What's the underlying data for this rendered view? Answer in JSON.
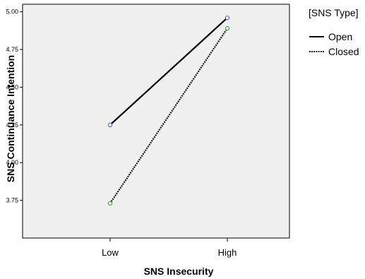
{
  "chart_data": {
    "type": "line",
    "xlabel": "SNS Insecurity",
    "ylabel": "SNS Continuance Intention",
    "categories": [
      "Low",
      "High"
    ],
    "ylim": [
      3.5,
      5.05
    ],
    "yticks": [
      "3.75",
      "4.00",
      "4.25",
      "4.50",
      "4.75",
      "5.00"
    ],
    "legend": {
      "title": "[SNS Type]",
      "position": "right"
    },
    "grid": false,
    "series": [
      {
        "name": "Open",
        "values": [
          4.25,
          4.96
        ],
        "style": "solid",
        "marker_color": "#3b5fc0"
      },
      {
        "name": "Closed",
        "values": [
          3.73,
          4.89
        ],
        "style": "dotted",
        "marker_color": "#2ea52e"
      }
    ],
    "colors": {
      "plot_bg": "#f0f0f0",
      "line": "#000000"
    }
  }
}
